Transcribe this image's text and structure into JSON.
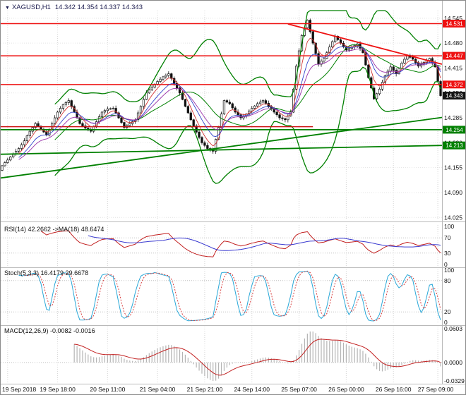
{
  "window": {
    "title_symbol": "XAGUSD,H1",
    "title_ohlc": "14.342 14.354 14.337 14.343"
  },
  "colors": {
    "background": "#ffffff",
    "grid": "#e4e4e4",
    "bollinger": "#008000",
    "ma_fast": "#d23333",
    "ma_mid": "#3344cc",
    "ma_slow": "#9933aa",
    "candle": "#111111",
    "resistance_red": "#ee1111",
    "trend_green": "#008000",
    "current_price_bg": "#141414",
    "rsi_line": "#c22020",
    "rsi_ma_line": "#3a3ad0",
    "stoch_main": "#2aa8d8",
    "stoch_signal": "#d84040",
    "macd_histogram": "#b4b4b4",
    "macd_signal": "#c22020",
    "axis_text": "#111111"
  },
  "chart_data": {
    "type": "candlestick",
    "symbol": "XAGUSD",
    "timeframe": "H1",
    "title": "XAGUSD,H1 14.342 14.354 14.337 14.343",
    "price_axis_range": [
      14.02,
      14.565
    ],
    "price_ticks": [
      14.545,
      14.48,
      14.415,
      14.35,
      14.285,
      14.22,
      14.155,
      14.09,
      14.025
    ],
    "x_labels": [
      {
        "bar": 2,
        "label": "19 Sep 2018"
      },
      {
        "bar": 20,
        "label": "19 Sep 18:00"
      },
      {
        "bar": 38,
        "label": "20 Sep 11:00"
      },
      {
        "bar": 56,
        "label": "21 Sep 04:00"
      },
      {
        "bar": 73,
        "label": "21 Sep 21:00"
      },
      {
        "bar": 90,
        "label": "24 Sep 14:00"
      },
      {
        "bar": 107,
        "label": "25 Sep 07:00"
      },
      {
        "bar": 124,
        "label": "26 Sep 00:00"
      },
      {
        "bar": 141,
        "label": "26 Sep 16:00"
      },
      {
        "bar": 157,
        "label": "27 Sep 09:00"
      }
    ],
    "closes": [
      14.16,
      14.168,
      14.175,
      14.183,
      14.19,
      14.198,
      14.205,
      14.215,
      14.225,
      14.238,
      14.25,
      14.26,
      14.27,
      14.263,
      14.255,
      14.248,
      14.24,
      14.255,
      14.27,
      14.285,
      14.3,
      14.31,
      14.32,
      14.325,
      14.33,
      14.315,
      14.3,
      14.285,
      14.27,
      14.264,
      14.258,
      14.254,
      14.25,
      14.263,
      14.275,
      14.288,
      14.3,
      14.304,
      14.308,
      14.309,
      14.31,
      14.298,
      14.285,
      14.273,
      14.26,
      14.265,
      14.27,
      14.275,
      14.28,
      14.298,
      14.315,
      14.333,
      14.35,
      14.358,
      14.365,
      14.373,
      14.38,
      14.386,
      14.392,
      14.396,
      14.4,
      14.388,
      14.375,
      14.363,
      14.35,
      14.333,
      14.315,
      14.298,
      14.28,
      14.264,
      14.248,
      14.234,
      14.22,
      14.213,
      14.205,
      14.202,
      14.198,
      14.229,
      14.26,
      14.295,
      14.33,
      14.326,
      14.322,
      14.311,
      14.3,
      14.293,
      14.285,
      14.29,
      14.295,
      14.303,
      14.31,
      14.316,
      14.322,
      14.326,
      14.33,
      14.323,
      14.315,
      14.308,
      14.3,
      14.293,
      14.285,
      14.283,
      14.28,
      14.29,
      14.3,
      14.36,
      14.42,
      14.46,
      14.5,
      14.52,
      14.54,
      14.51,
      14.48,
      14.453,
      14.425,
      14.433,
      14.44,
      14.455,
      14.47,
      14.484,
      14.498,
      14.489,
      14.48,
      14.471,
      14.462,
      14.466,
      14.47,
      14.474,
      14.478,
      14.467,
      14.455,
      14.423,
      14.39,
      14.363,
      14.335,
      14.348,
      14.36,
      14.378,
      14.395,
      14.407,
      14.418,
      14.409,
      14.4,
      14.414,
      14.428,
      14.438,
      14.448,
      14.443,
      14.438,
      14.429,
      14.42,
      14.425,
      14.43,
      14.435,
      14.44,
      14.429,
      14.418,
      14.38,
      14.343
    ],
    "current_price": 14.343,
    "lines": [
      {
        "type": "hline",
        "price": 14.531,
        "color": "#ee1111",
        "width": 1.5
      },
      {
        "type": "hline",
        "price": 14.447,
        "color": "#ee1111",
        "width": 1.5
      },
      {
        "type": "hline",
        "price": 14.372,
        "color": "#ee1111",
        "width": 1.5
      },
      {
        "type": "hline",
        "price": 14.254,
        "color": "#008000",
        "width": 1.8
      },
      {
        "type": "trend",
        "b1": 0,
        "p1": 14.19,
        "b2": 159,
        "p2": 14.213,
        "color": "#008000",
        "width": 1.8
      },
      {
        "type": "trend",
        "b1": 0,
        "p1": 14.128,
        "b2": 159,
        "p2": 14.286,
        "color": "#008000",
        "width": 1.8
      },
      {
        "type": "trend",
        "b1": 0,
        "p1": 14.262,
        "b2": 112,
        "p2": 14.262,
        "color": "#cc1111",
        "width": 1.5
      },
      {
        "type": "trend",
        "b1": 103,
        "p1": 14.53,
        "b2": 162,
        "p2": 14.425,
        "color": "#ee1111",
        "width": 1.8
      }
    ],
    "price_label_boxes": [
      {
        "price": 14.531,
        "bg": "#ee1111"
      },
      {
        "price": 14.447,
        "bg": "#ee1111"
      },
      {
        "price": 14.372,
        "bg": "#ee1111"
      },
      {
        "price": 14.343,
        "bg": "#141414"
      },
      {
        "price": 14.254,
        "bg": "#008000"
      },
      {
        "price": 14.213,
        "bg": "#008000"
      }
    ],
    "indicators": {
      "rsi": {
        "label": "RSI(14) 42.2662 ->MA(18) 48.6474",
        "period": 14,
        "ma_period": 18,
        "current": 42.2662,
        "ma_current": 48.6474,
        "ticks": [
          100,
          70,
          30,
          0
        ],
        "dotted_levels": [
          70,
          30
        ]
      },
      "stoch": {
        "label": "Stoch(5,3,3) 16.4179 29.6678",
        "k": 5,
        "slowing": 3,
        "d": 3,
        "current_k": 16.4179,
        "current_d": 29.6678,
        "ticks": [
          100,
          80,
          20,
          0
        ],
        "dotted_levels": [
          80,
          20
        ]
      },
      "macd": {
        "label": "MACD(12,26,9) -0.0082 -0.0016",
        "fast": 12,
        "slow": 26,
        "signal": 9,
        "current_macd": -0.0082,
        "current_signal": -0.0016,
        "ticks": [
          "0.0603",
          "0.0000",
          "-0.0329"
        ]
      }
    }
  }
}
